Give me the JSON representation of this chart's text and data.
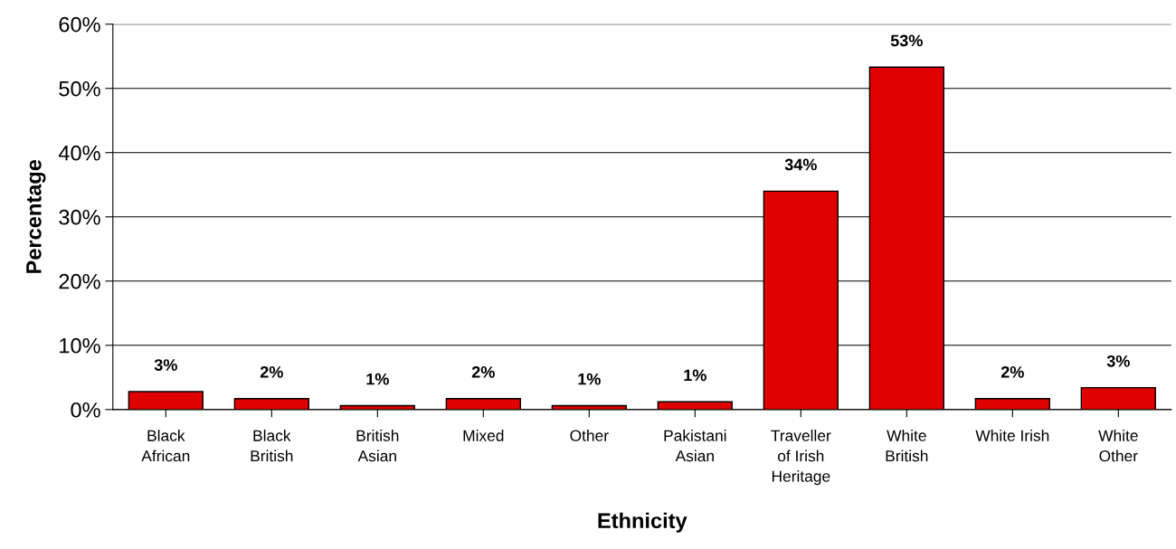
{
  "chart_data": {
    "type": "bar",
    "xlabel": "Ethnicity",
    "ylabel": "Percentage",
    "categories": [
      "Black\nAfrican",
      "Black\nBritish",
      "British\nAsian",
      "Mixed",
      "Other",
      "Pakistani\nAsian",
      "Traveller\nof Irish\nHeritage",
      "White\nBritish",
      "White Irish",
      "White\nOther"
    ],
    "values": [
      2.8,
      1.7,
      0.6,
      1.7,
      0.6,
      1.2,
      34,
      53.3,
      1.7,
      3.4
    ],
    "value_labels": [
      "3%",
      "2%",
      "1%",
      "2%",
      "1%",
      "1%",
      "34%",
      "53%",
      "2%",
      "3%"
    ],
    "color": "#e00000",
    "ylim": [
      0,
      60
    ],
    "yticks": [
      {
        "value": 0,
        "label": "0%"
      },
      {
        "value": 10,
        "label": "10%"
      },
      {
        "value": 20,
        "label": "20%"
      },
      {
        "value": 30,
        "label": "30%"
      },
      {
        "value": 40,
        "label": "40%"
      },
      {
        "value": 50,
        "label": "50%"
      },
      {
        "value": 60,
        "label": "60%"
      }
    ],
    "grid": "y"
  }
}
